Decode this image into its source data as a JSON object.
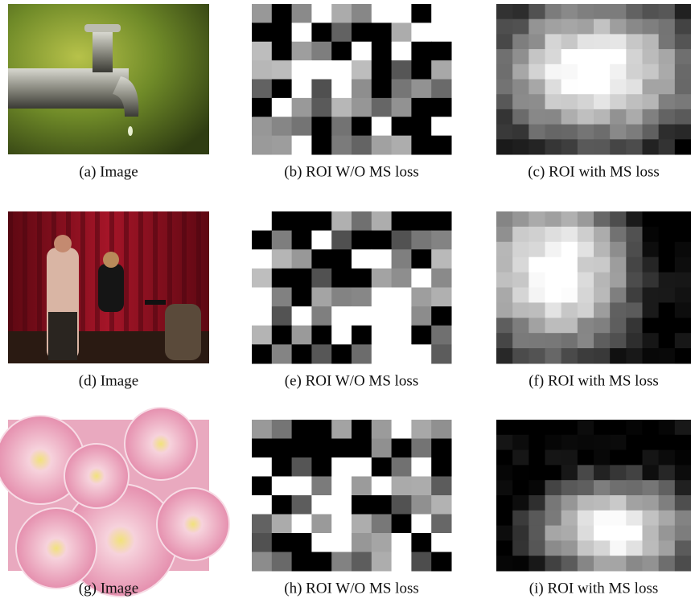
{
  "figure": {
    "panels": [
      {
        "caption": "(a) Image"
      },
      {
        "caption": "(b) ROI W/O MS loss"
      },
      {
        "caption": "(c) ROI with MS loss"
      },
      {
        "caption": "(d) Image"
      },
      {
        "caption": "(e) ROI W/O MS loss"
      },
      {
        "caption": "(f) ROI with MS loss"
      },
      {
        "caption": "(g) Image"
      },
      {
        "caption": "(h) ROI W/O MS loss"
      },
      {
        "caption": "(i) ROI with MS loss"
      }
    ]
  }
}
